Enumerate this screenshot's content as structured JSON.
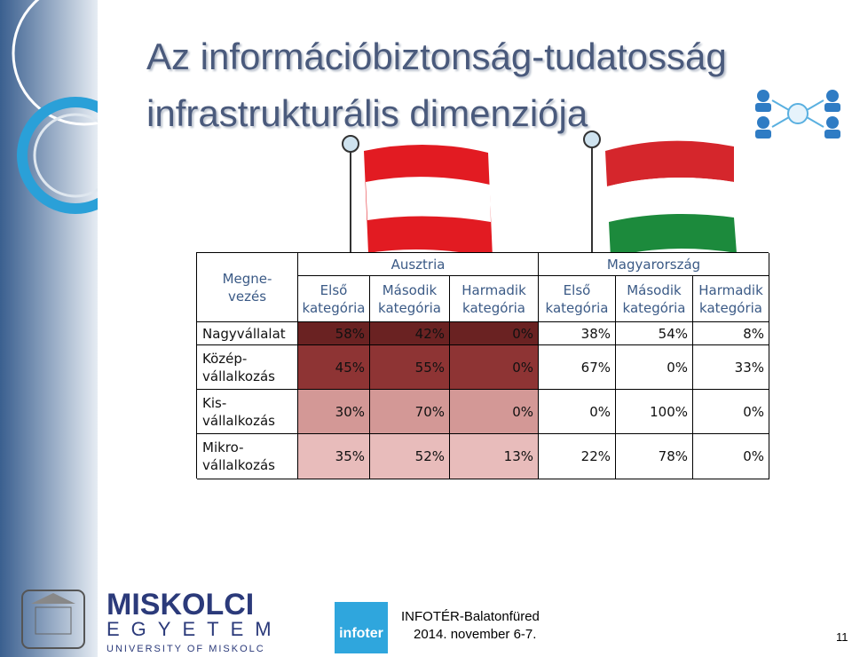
{
  "title": [
    "Az információbiztonság-tudatosság",
    "infrastrukturális dimenziója"
  ],
  "table": {
    "corner": [
      "Megne-",
      "vezés"
    ],
    "groups": [
      "Ausztria",
      "Magyarország"
    ],
    "columns": [
      [
        "Első",
        "kategória"
      ],
      [
        "Második",
        "kategória"
      ],
      [
        "Harmadik",
        "kategória"
      ],
      [
        "Első",
        "kategória"
      ],
      [
        "Második",
        "kategória"
      ],
      [
        "Harmadik",
        "kategória"
      ]
    ],
    "rows": [
      {
        "label": [
          "Nagyvállalat"
        ],
        "values": [
          "58%",
          "42%",
          "0%",
          "38%",
          "54%",
          "8%"
        ]
      },
      {
        "label": [
          "Közép-",
          "vállalkozás"
        ],
        "values": [
          "45%",
          "55%",
          "0%",
          "67%",
          "0%",
          "33%"
        ]
      },
      {
        "label": [
          "Kis-",
          "vállalkozás"
        ],
        "values": [
          "30%",
          "70%",
          "0%",
          "0%",
          "100%",
          "0%"
        ]
      },
      {
        "label": [
          "Mikro-",
          "vállalkozás"
        ],
        "values": [
          "35%",
          "52%",
          "13%",
          "22%",
          "78%",
          "0%"
        ]
      }
    ]
  },
  "footer": {
    "university": [
      "MISKOLCI",
      "EGYETEM",
      "UNIVERSITY OF MISKOLC"
    ],
    "logo": "infoter",
    "event": "INFOTÉR-Balatonfüred",
    "date": "2014. november 6-7.",
    "page": "11"
  }
}
